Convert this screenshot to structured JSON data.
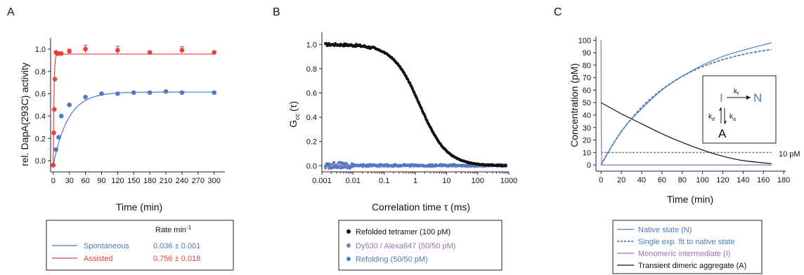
{
  "colors": {
    "blue": "#4a7bc4",
    "red": "#e8413c",
    "purple": "#9b6fb5",
    "black": "#111111",
    "gray": "#7a7a7a"
  },
  "chart_data": [
    {
      "panel": "A",
      "type": "scatter",
      "xlabel": "Time (min)",
      "ylabel": "rel. DapA(293C) activity",
      "xlim": [
        -5,
        320
      ],
      "ylim": [
        -0.1,
        1.1
      ],
      "xticks": [
        0,
        30,
        60,
        90,
        120,
        150,
        180,
        210,
        240,
        270,
        300
      ],
      "xtick_labels": [
        "0",
        "30",
        "60",
        "90",
        "120",
        "150",
        "180",
        "210",
        "240",
        "270",
        "300"
      ],
      "yticks": [
        0.0,
        0.2,
        0.4,
        0.6,
        0.8,
        1.0
      ],
      "ytick_labels": [
        "0.0",
        "0.2",
        "0.4",
        "0.6",
        "0.8",
        "1.0"
      ],
      "series": [
        {
          "name": "Spontaneous",
          "color_key": "blue",
          "rate": "0.036 ± 0.001",
          "x": [
            0,
            5,
            10,
            15,
            30,
            60,
            90,
            120,
            150,
            180,
            210,
            240,
            300
          ],
          "y": [
            -0.04,
            0.1,
            0.21,
            0.4,
            0.5,
            0.57,
            0.6,
            0.6,
            0.61,
            0.61,
            0.62,
            0.61,
            0.61
          ],
          "fit": {
            "model": "exp",
            "plateau": 0.615,
            "y0": -0.04,
            "k": 0.036
          }
        },
        {
          "name": "Assisted",
          "color_key": "red",
          "rate": "0.756 ± 0.018",
          "x": [
            0,
            1,
            2,
            3,
            5,
            7,
            10,
            15,
            30,
            60,
            120,
            180,
            240,
            300
          ],
          "y": [
            -0.04,
            0.25,
            0.46,
            0.73,
            0.97,
            0.96,
            0.96,
            0.96,
            0.98,
            1.0,
            0.99,
            0.97,
            0.99,
            0.97
          ],
          "err": [
            0,
            0,
            0,
            0,
            0,
            0,
            0,
            0,
            0.02,
            0.035,
            0.035,
            0.01,
            0.03,
            0.01
          ],
          "fit": {
            "model": "exp",
            "plateau": 0.955,
            "y0": -0.04,
            "k": 0.756
          }
        }
      ],
      "legend": {
        "header": "Rate min",
        "header_sup": "-1"
      }
    },
    {
      "panel": "B",
      "type": "scatter",
      "xscale": "log",
      "xlabel": "Correlation time τ (ms)",
      "ylabel": "G",
      "ylabel_sub": "cc",
      "ylabel_tail": "(τ)",
      "xlim": [
        0.001,
        1000
      ],
      "ylim": [
        -0.05,
        1.1
      ],
      "xticks": [
        0.001,
        0.01,
        0.1,
        1,
        10,
        100,
        1000
      ],
      "xtick_labels": [
        "0.001",
        "0.01",
        "0.1",
        "1",
        "10",
        "100",
        "1000"
      ],
      "yticks": [
        0.0,
        0.2,
        0.4,
        0.6,
        0.8,
        1.0
      ],
      "ytick_labels": [
        "0.0",
        "0.2",
        "0.4",
        "0.6",
        "0.8",
        "1.0"
      ],
      "series": [
        {
          "name": "Refolded tetramer (100 pM)",
          "color_key": "black",
          "model": "decay",
          "amplitude": 1.0,
          "tau": 1.4,
          "tmin": 0.0013,
          "tmax": 800,
          "points": 200
        },
        {
          "name": "Dy530 / Alexa647 (50/50 pM)",
          "color_key": "purple",
          "model": "flat",
          "level": 0.0,
          "tmin": 0.0013,
          "tmax": 800,
          "points": 150
        },
        {
          "name": "Refolding (50/50 pM)",
          "color_key": "blue",
          "model": "flat",
          "level": 0.005,
          "tmin": 0.0013,
          "tmax": 800,
          "points": 150
        }
      ]
    },
    {
      "panel": "C",
      "type": "line",
      "xlabel": "Time (min)",
      "ylabel": "Concentration (pM)",
      "xlim": [
        -5,
        182
      ],
      "ylim": [
        -5,
        103
      ],
      "xticks": [
        0,
        20,
        40,
        60,
        80,
        100,
        120,
        140,
        160,
        180
      ],
      "xtick_labels": [
        "0",
        "20",
        "40",
        "60",
        "80",
        "100",
        "120",
        "140",
        "160",
        "180"
      ],
      "yticks": [
        0,
        10,
        20,
        30,
        40,
        50,
        60,
        70,
        80,
        90,
        100
      ],
      "ytick_labels": [
        "0",
        "10",
        "20",
        "30",
        "40",
        "50",
        "60",
        "70",
        "80",
        "90",
        "100"
      ],
      "series": [
        {
          "name": "Native state (N)",
          "color_key": "blue",
          "style": "solid",
          "values_at": {
            "x": [
              0,
              20,
              40,
              60,
              80,
              100,
              120,
              140,
              168
            ],
            "y": [
              0,
              27,
              45,
              60,
              71,
              80,
              87,
              92,
              98
            ]
          }
        },
        {
          "name": "Single exp. fit to native state",
          "color_key": "blue",
          "style": "dashed",
          "fit": {
            "plateau": 100,
            "k": 0.0155
          }
        },
        {
          "name": "Monomeric intermediate (I)",
          "color_key": "purple",
          "style": "solid",
          "values_at": {
            "x": [
              0,
              0.2,
              0.6,
              168
            ],
            "y": [
              100,
              30,
              0,
              0
            ]
          }
        },
        {
          "name": "Transient dimeric aggregate (A)",
          "color_key": "black",
          "style": "solid",
          "values_at": {
            "x": [
              0,
              20,
              40,
              60,
              80,
              100,
              120,
              140,
              168
            ],
            "y": [
              50,
              41,
              33,
              25,
              18,
              12,
              7,
              3.5,
              1
            ]
          }
        }
      ],
      "reference_line": {
        "y": 10,
        "label": "10 pM"
      },
      "scheme": {
        "I": "I",
        "N": "N",
        "A": "A",
        "kf": "k",
        "kf_sub": "f",
        "kd": "k",
        "kd_sub": "d",
        "ka": "k",
        "ka_sub": "a"
      }
    }
  ]
}
